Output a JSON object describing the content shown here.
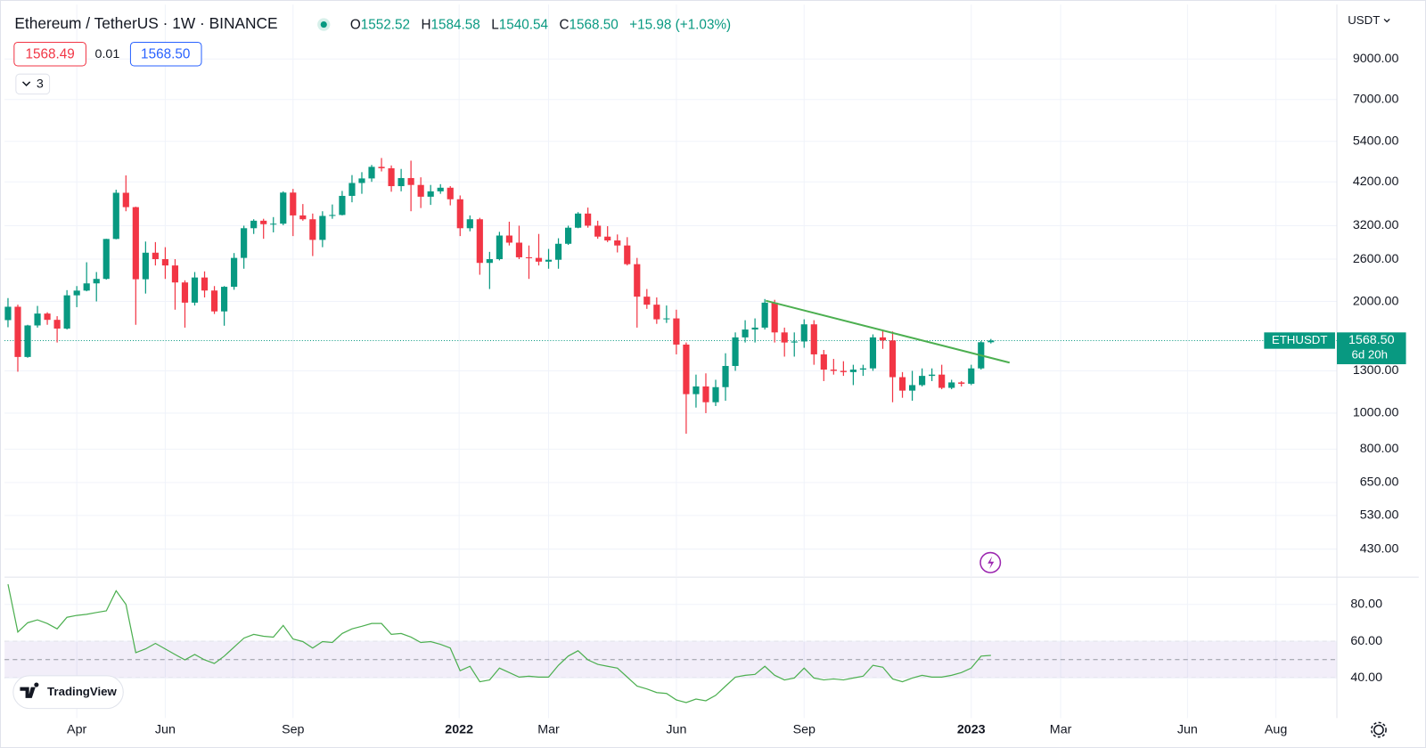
{
  "header": {
    "symbol": "Ethereum / TetherUS · 1W · BINANCE",
    "ohlc": [
      {
        "key": "O",
        "value": "1552.52"
      },
      {
        "key": "H",
        "value": "1584.58"
      },
      {
        "key": "L",
        "value": "1540.54"
      },
      {
        "key": "C",
        "value": "1568.50"
      }
    ],
    "change": "+15.98 (+1.03%)",
    "bid": "1568.49",
    "spread": "0.01",
    "ask": "1568.50",
    "indicators": "3",
    "currency": "USDT",
    "price_tag": {
      "symbol": "ETHUSDT",
      "price": "1568.50",
      "countdown": "6d 20h"
    },
    "brand": "TradingView"
  },
  "chart_data": [
    {
      "type": "candlestick",
      "log_scale": true,
      "grid": true,
      "up_color": "#089981",
      "down_color": "#f23645",
      "categories": [
        null,
        null,
        null,
        null,
        null,
        null,
        null,
        null,
        null,
        null,
        null,
        null,
        null,
        null,
        null,
        null,
        null,
        null,
        null,
        null,
        null,
        null,
        null,
        null,
        null,
        null,
        null,
        null,
        null,
        null,
        null,
        null,
        null,
        null,
        null,
        null,
        null,
        null,
        null,
        null,
        null,
        null,
        null,
        null,
        null,
        null,
        null,
        null,
        null,
        null,
        null,
        null,
        null,
        null,
        null,
        null,
        null,
        null,
        null,
        null,
        null,
        null,
        null,
        null,
        null,
        null,
        null,
        null,
        null,
        null,
        null,
        null,
        null,
        null,
        null,
        null,
        null,
        null,
        null,
        null,
        null,
        null,
        null,
        null,
        null,
        null,
        null,
        null,
        null,
        null,
        null,
        null,
        null,
        null,
        null,
        null,
        null,
        null,
        null,
        null,
        null
      ],
      "open": [
        1781,
        1935,
        1417,
        1723,
        1855,
        1784,
        1690,
        2077,
        2139,
        2237,
        2300,
        2947,
        3925,
        3590,
        2295,
        2706,
        2600,
        2500,
        2250,
        1985,
        2320,
        2140,
        1880,
        2190,
        2620,
        3150,
        3300,
        3230,
        3240,
        3930,
        3410,
        3330,
        2930,
        3400,
        3420,
        3850,
        4170,
        4290,
        4610,
        4570,
        4090,
        4300,
        4120,
        3830,
        3960,
        4050,
        3770,
        3150,
        3330,
        2540,
        2600,
        3010,
        2880,
        2630,
        2620,
        2560,
        2590,
        2860,
        3160,
        3450,
        3200,
        2990,
        2920,
        2830,
        2520,
        2060,
        1960,
        1790,
        1800,
        1530,
        1125,
        1180,
        1070,
        1175,
        1340,
        1600,
        1680,
        1700,
        1985,
        1650,
        1550,
        1560,
        1735,
        1440,
        1310,
        1300,
        1290,
        1310,
        1320,
        1600,
        1570,
        1250,
        1150,
        1190,
        1260,
        1270,
        1170,
        1210,
        1200,
        1320,
        1552.52
      ],
      "high": [
        2042,
        1960,
        1730,
        1945,
        1870,
        1825,
        2145,
        2200,
        2550,
        2400,
        2950,
        4000,
        4372,
        3600,
        2900,
        2890,
        2800,
        2600,
        2280,
        2400,
        2410,
        2200,
        2200,
        2700,
        3200,
        3330,
        3340,
        3375,
        3960,
        4020,
        3660,
        3450,
        3500,
        3650,
        3970,
        4380,
        4460,
        4665,
        4870,
        4650,
        4550,
        4790,
        4320,
        4120,
        4140,
        4090,
        3860,
        3410,
        3360,
        2720,
        3080,
        3280,
        3200,
        2830,
        3040,
        2770,
        2960,
        3200,
        3480,
        3580,
        3300,
        3190,
        3030,
        2980,
        2620,
        2160,
        2050,
        1950,
        1900,
        1550,
        1270,
        1280,
        1230,
        1450,
        1650,
        1780,
        1800,
        2030,
        2020,
        1700,
        1650,
        1790,
        1780,
        1480,
        1400,
        1380,
        1350,
        1350,
        1630,
        1680,
        1660,
        1290,
        1300,
        1320,
        1320,
        1350,
        1230,
        1220,
        1350,
        1565,
        1584.58
      ],
      "low": [
        1704,
        1293,
        1410,
        1700,
        1730,
        1550,
        1680,
        1930,
        2130,
        2000,
        2290,
        2940,
        3500,
        1730,
        2100,
        2500,
        2300,
        1900,
        1700,
        1950,
        2050,
        1850,
        1720,
        2150,
        2450,
        3040,
        2950,
        3070,
        3210,
        3000,
        3300,
        2650,
        2800,
        3340,
        3410,
        3700,
        3900,
        4200,
        4480,
        3950,
        3960,
        3500,
        3570,
        3640,
        3900,
        3630,
        3000,
        3090,
        2360,
        2160,
        2580,
        2830,
        2600,
        2300,
        2500,
        2450,
        2450,
        2840,
        3150,
        3160,
        2950,
        2890,
        2710,
        2500,
        1700,
        1910,
        1740,
        1750,
        1440,
        880,
        1035,
        1000,
        1045,
        1080,
        1300,
        1550,
        1550,
        1680,
        1550,
        1420,
        1420,
        1500,
        1350,
        1220,
        1270,
        1260,
        1190,
        1260,
        1300,
        1490,
        1070,
        1100,
        1080,
        1180,
        1220,
        1160,
        1160,
        1180,
        1190,
        1310,
        1540.54
      ],
      "close": [
        1935,
        1417,
        1723,
        1855,
        1784,
        1690,
        2077,
        2139,
        2237,
        2300,
        2947,
        3925,
        3590,
        2295,
        2706,
        2600,
        2500,
        2250,
        1985,
        2320,
        2140,
        1880,
        2190,
        2620,
        3150,
        3300,
        3230,
        3240,
        3930,
        3410,
        3330,
        2930,
        3400,
        3420,
        3850,
        4170,
        4290,
        4610,
        4570,
        4090,
        4300,
        4120,
        3830,
        3960,
        4050,
        3770,
        3150,
        3330,
        2540,
        2600,
        3010,
        2880,
        2630,
        2620,
        2560,
        2590,
        2860,
        3160,
        3450,
        3200,
        2990,
        2920,
        2830,
        2520,
        2060,
        1960,
        1790,
        1800,
        1530,
        1125,
        1180,
        1070,
        1175,
        1340,
        1600,
        1680,
        1700,
        1985,
        1650,
        1550,
        1560,
        1735,
        1440,
        1310,
        1300,
        1290,
        1310,
        1320,
        1600,
        1570,
        1250,
        1150,
        1190,
        1260,
        1270,
        1170,
        1210,
        1200,
        1320,
        1552.52,
        1568.5
      ],
      "xlim": [
        -0.35,
        135.2
      ],
      "xticks": [
        {
          "value": 7.0,
          "label": "Apr"
        },
        {
          "value": 16.0,
          "label": "Jun"
        },
        {
          "value": 29.0,
          "label": "Sep"
        },
        {
          "value": 45.9,
          "label": "2022"
        },
        {
          "value": 55.0,
          "label": "Mar"
        },
        {
          "value": 68.0,
          "label": "Jun"
        },
        {
          "value": 81.0,
          "label": "Sep"
        },
        {
          "value": 98.0,
          "label": "2023"
        },
        {
          "value": 107.1,
          "label": "Mar"
        },
        {
          "value": 120.0,
          "label": "Jun"
        },
        {
          "value": 129.0,
          "label": "Aug"
        }
      ],
      "ylim": [
        363.5,
        12620
      ],
      "yticks": [
        {
          "value": 9000,
          "label": "9000.00"
        },
        {
          "value": 7000,
          "label": "7000.00"
        },
        {
          "value": 5400,
          "label": "5400.00"
        },
        {
          "value": 4200,
          "label": "4200.00"
        },
        {
          "value": 3200,
          "label": "3200.00"
        },
        {
          "value": 2600,
          "label": "2600.00"
        },
        {
          "value": 2000,
          "label": "2000.00"
        },
        {
          "value": 1300,
          "label": "1300.00"
        },
        {
          "value": 1000,
          "label": "1000.00"
        },
        {
          "value": 800,
          "label": "800.00"
        },
        {
          "value": 650,
          "label": "650.00"
        },
        {
          "value": 530,
          "label": "530.00"
        },
        {
          "value": 430,
          "label": "430.00"
        }
      ],
      "trendline": {
        "x": [
          77.1,
          101.9
        ],
        "y": [
          2009,
          1368
        ],
        "color": "#4caf50"
      }
    },
    {
      "type": "line",
      "grid": true,
      "xlim": [
        -0.35,
        135.2
      ],
      "ylim": [
        18.3,
        94.3
      ],
      "yticks": [
        {
          "value": 80,
          "label": "80.00"
        },
        {
          "value": 60,
          "label": "60.00"
        },
        {
          "value": 40,
          "label": "40.00"
        }
      ],
      "bands": {
        "upper": 60,
        "middle": 50,
        "lower": 40,
        "color": "#7e57c2"
      },
      "series": [
        {
          "color": "#4caf50",
          "values": [
            90.9,
            65,
            70,
            71.6,
            69.6,
            66.7,
            73,
            74,
            74.6,
            75.6,
            76.5,
            87.4,
            80,
            53.8,
            55.8,
            58.8,
            55.8,
            52.8,
            49.9,
            52.8,
            49.9,
            47.9,
            51.9,
            56.8,
            61.7,
            63.7,
            62.7,
            62.2,
            68.6,
            61.2,
            59.8,
            56.3,
            59.8,
            59.3,
            64.2,
            66.7,
            68.1,
            69.6,
            69.6,
            63.7,
            64.2,
            62.2,
            59.3,
            59.8,
            58.3,
            56.3,
            44,
            46.4,
            38,
            39,
            45.4,
            43,
            40.5,
            41,
            40.5,
            40.5,
            46.9,
            51.9,
            54.8,
            49.9,
            47.4,
            46.4,
            45.4,
            40.5,
            35.6,
            34.1,
            32.1,
            31.6,
            28.1,
            26.7,
            28.6,
            27.7,
            30.6,
            35.6,
            40.5,
            41.5,
            42,
            46.4,
            41.5,
            39,
            40,
            45.4,
            40,
            39,
            39.5,
            39,
            40,
            41,
            46.9,
            45.9,
            39.5,
            38,
            40,
            41.5,
            40.5,
            40.5,
            41.5,
            43,
            45.4,
            51.9,
            52.3
          ]
        }
      ]
    }
  ]
}
